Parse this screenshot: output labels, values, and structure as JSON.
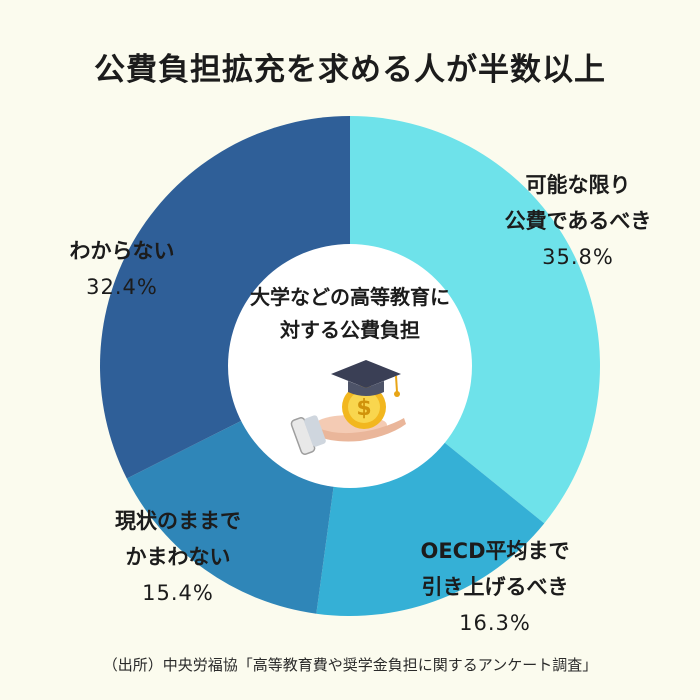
{
  "title": "公費負担拡充を求める人が半数以上",
  "source": "（出所）中央労福協「高等教育費や奨学金負担に関するアンケート調査」",
  "center_label": [
    "大学などの高等教育に",
    "対する公費負担"
  ],
  "center_icon": "graduation-cap-coin-hand-icon",
  "chart_data": {
    "type": "pie",
    "donut": true,
    "start_angle_deg": 0,
    "direction": "clockwise",
    "slices": [
      {
        "label_lines": [
          "可能な限り",
          "公費であるべき"
        ],
        "value": 35.8,
        "value_text": "35.8%",
        "color": "#6ee2ea"
      },
      {
        "label_lines": [
          "OECD平均まで",
          "引き上げるべき"
        ],
        "value": 16.3,
        "value_text": "16.3%",
        "color": "#35b0d6"
      },
      {
        "label_lines": [
          "現状のままで",
          "かまわない"
        ],
        "value": 15.4,
        "value_text": "15.4%",
        "color": "#2f86b8"
      },
      {
        "label_lines": [
          "わからない"
        ],
        "value": 32.4,
        "value_text": "32.4%",
        "color": "#2f5f98"
      }
    ]
  }
}
